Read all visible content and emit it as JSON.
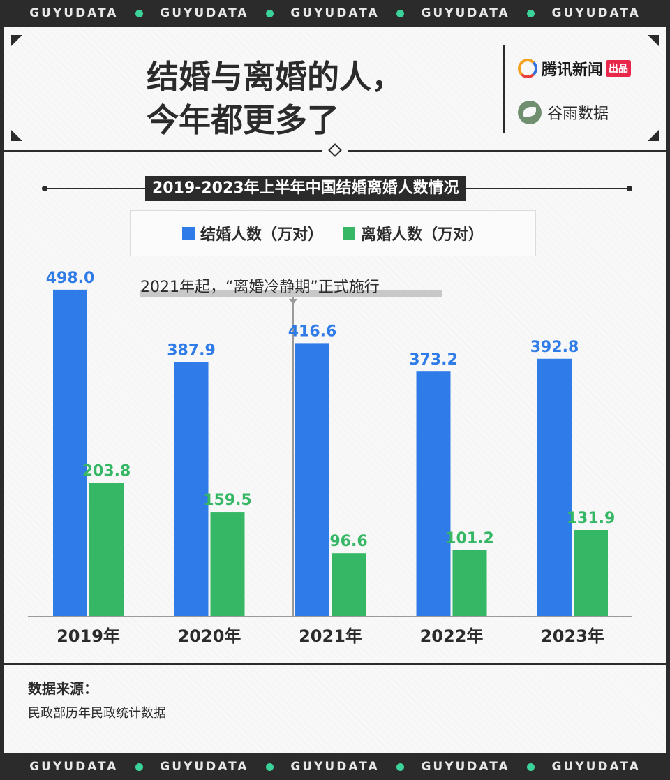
{
  "banner": {
    "words": [
      "GUYUDATA",
      "GUYUDATA",
      "GUYUDATA",
      "GUYUDATA",
      "GUYUDATA"
    ]
  },
  "header": {
    "title_line1": "结婚与离婚的人，",
    "title_line2": "今年都更多了",
    "brand1_name": "腾讯新闻",
    "brand1_badge": "出品",
    "brand2_name": "谷雨数据"
  },
  "colors": {
    "marriage": "#2f7be8",
    "divorce": "#36b765",
    "dark": "#2b2b2b",
    "accent_green": "#3cd39a"
  },
  "chart_data": {
    "type": "bar",
    "title": "2019-2023年上半年中国结婚离婚人数情况",
    "categories": [
      "2019年",
      "2020年",
      "2021年",
      "2022年",
      "2023年"
    ],
    "series": [
      {
        "name": "结婚人数（万对）",
        "values": [
          498.0,
          387.9,
          416.6,
          373.2,
          392.8
        ]
      },
      {
        "name": "离婚人数（万对）",
        "values": [
          203.8,
          159.5,
          96.6,
          101.2,
          131.9
        ]
      }
    ],
    "ylim": [
      0,
      500
    ],
    "annotation": "2021年起，“离婚冷静期”正式施行",
    "grid": false,
    "legend_position": "top"
  },
  "source": {
    "title": "数据来源：",
    "text": "民政部历年民政统计数据"
  }
}
